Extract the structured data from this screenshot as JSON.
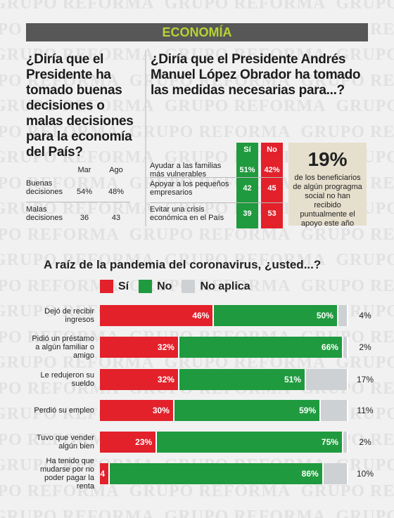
{
  "watermark": "GRUPO REFORMA",
  "header": {
    "title": "ECONOMÍA"
  },
  "left": {
    "question": "¿Diría que el Presidente ha tomado buenas decisiones o malas decisiones para la economía del País?",
    "table": {
      "columns": [
        "Mar",
        "Ago"
      ],
      "rows": [
        [
          "Buenas decisiones",
          "54%",
          "48%"
        ],
        [
          "Malas decisiones",
          "36",
          "43"
        ]
      ]
    }
  },
  "right": {
    "question": "¿Diría que el Presidente Andrés Manuel López Obrador ha tomado las medidas necesarias para...?",
    "table": {
      "columns": [
        "Sí",
        "No"
      ],
      "rows": [
        [
          "Ayudar a las familias más vulnerables",
          "51%",
          "42%"
        ],
        [
          "Apoyar a los pequeños empresarios",
          "42",
          "45"
        ],
        [
          "Evitar una crisis económica en el País",
          "39",
          "53"
        ]
      ]
    },
    "callout": {
      "figure": "19%",
      "text": "de los beneficiarios de algún progragma social no han recibido puntualmente el apoyo este año"
    }
  },
  "chart_data": {
    "type": "stacked-bar",
    "orientation": "horizontal",
    "title": "A raíz de la pandemia del coronavirus, ¿usted...?",
    "categories": [
      "Dejó de recibir ingresos",
      "Pidió un préstamo a algún familiar o amigo",
      "Le redujeron su sueldo",
      "Perdió su empleo",
      "Tuvo que vender algún bien",
      "Ha tenido que mudarse por no poder pagar la renta"
    ],
    "xlim": [
      0,
      100
    ],
    "series": [
      {
        "name": "Sí",
        "color": "#e2212b",
        "values": [
          46,
          32,
          32,
          30,
          23,
          4
        ],
        "value_labels": [
          "46%",
          "32%",
          "32%",
          "30%",
          "23%",
          "4"
        ]
      },
      {
        "name": "No",
        "color": "#1f9a3e",
        "values": [
          50,
          66,
          51,
          59,
          75,
          86
        ],
        "value_labels": [
          "50%",
          "66%",
          "51%",
          "59%",
          "75%",
          "86%"
        ]
      },
      {
        "name": "No aplica",
        "color": "#cdd1d4",
        "values": [
          4,
          2,
          17,
          11,
          2,
          10
        ],
        "value_labels": [
          "4%",
          "2%",
          "17%",
          "11%",
          "2%",
          "10%"
        ]
      }
    ]
  }
}
